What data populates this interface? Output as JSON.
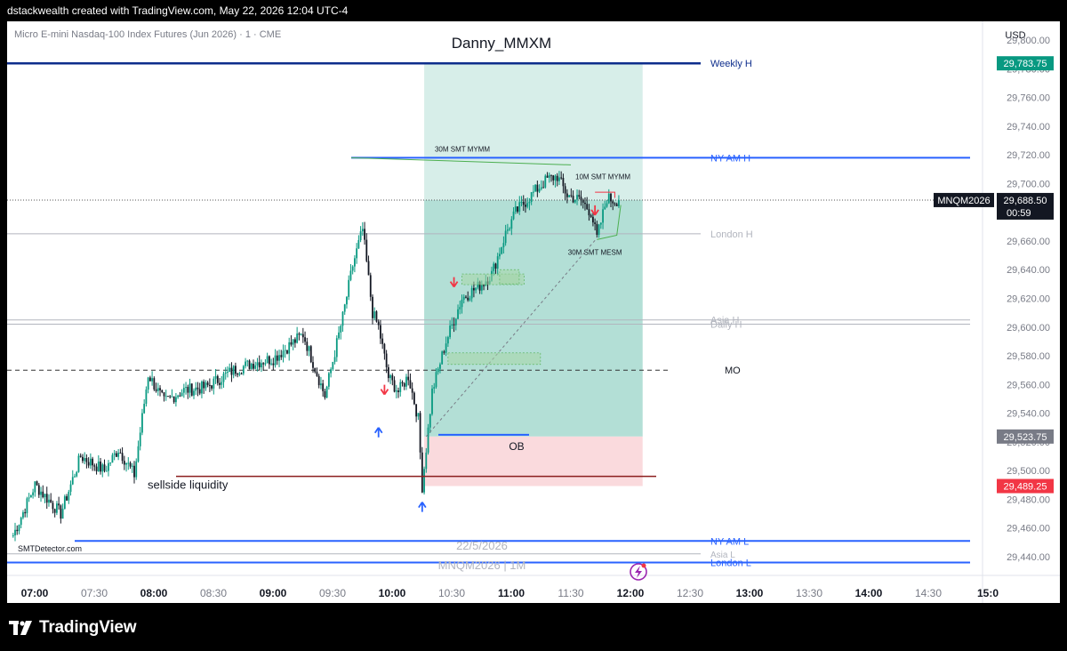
{
  "topbar": {
    "caption": "dstackwealth created with TradingView.com, May 22, 2026 12:04 UTC-4"
  },
  "header": {
    "symbol_desc": "Micro E-mini Nasdaq-100 Index Futures (Jun 2026) · 1 · CME",
    "currency": "USD"
  },
  "chart_title": "Danny_MMXM",
  "footer": {
    "brand": "TradingView"
  },
  "chart_data": {
    "type": "candlestick",
    "symbol": "MNQM2026",
    "interval": "1M",
    "watermark": [
      "22/5/2026",
      "MNQM2026 | 1M"
    ],
    "credit": "SMTDetector.com",
    "x_ticks": [
      "07:00",
      "07:30",
      "08:00",
      "08:30",
      "09:00",
      "09:30",
      "10:00",
      "10:30",
      "11:00",
      "11:30",
      "12:00",
      "12:30",
      "13:00",
      "13:30",
      "14:00",
      "14:30",
      "15:0"
    ],
    "y_ticks": [
      29440,
      29460,
      29480,
      29500,
      29520,
      29540,
      29560,
      29580,
      29600,
      29620,
      29640,
      29660,
      29680,
      29700,
      29720,
      29740,
      29760,
      29780,
      29800
    ],
    "y_tick_labels": [
      "29,440.00",
      "29,460.00",
      "29,480.00",
      "29,500.00",
      "29,520.00",
      "29,540.00",
      "29,560.00",
      "29,580.00",
      "29,600.00",
      "29,620.00",
      "29,640.00",
      "29,660.00",
      "29,680.00",
      "29,700.00",
      "29,720.00",
      "29,740.00",
      "29,760.00",
      "29,780.00",
      "29,800.00"
    ],
    "y_range": [
      29427,
      29813
    ],
    "last_price": {
      "symbol": "MNQM2026",
      "value": "29,688.50",
      "countdown": "00:59",
      "level": 29688.5
    },
    "price_badges": [
      {
        "label": "29,783.75",
        "level": 29783.75,
        "color": "#089981"
      },
      {
        "label": "29,523.75",
        "level": 29523.75,
        "color": "#787b86"
      },
      {
        "label": "29,489.25",
        "level": 29489.25,
        "color": "#f23645"
      }
    ],
    "levels": [
      {
        "name": "Weekly H",
        "price": 29783.75,
        "color": "#0d2d8c"
      },
      {
        "name": "NY AM H",
        "price": 29718,
        "color": "#2962ff"
      },
      {
        "name": "London H",
        "price": 29665,
        "color": "#b2b5be"
      },
      {
        "name": "Asia H",
        "price": 29605,
        "color": "#b2b5be"
      },
      {
        "name": "Daily H",
        "price": 29602,
        "color": "#b2b5be"
      },
      {
        "name": "MO",
        "price": 29570,
        "color": "#131722"
      },
      {
        "name": "NY AM L",
        "price": 29451,
        "color": "#2962ff"
      },
      {
        "name": "Asia L",
        "price": 29442,
        "color": "#b2b5be"
      },
      {
        "name": "London L",
        "price": 29436,
        "color": "#2962ff"
      }
    ],
    "annotations": [
      {
        "text": "sellside liquidity",
        "price": 29496
      },
      {
        "text": "OB",
        "price": 29523.75
      },
      {
        "text": "30M SMT MYMM"
      },
      {
        "text": "10M SMT MYMM"
      },
      {
        "text": "30M SMT MESM"
      }
    ],
    "long_position": {
      "entry": 29523.75,
      "target": 29783.75,
      "stop": 29489.25,
      "start_time": "10:26",
      "end_time": "12:16"
    },
    "candles_anchor": [
      [
        "06:59",
        29455
      ],
      [
        "07:10",
        29490
      ],
      [
        "07:23",
        29470
      ],
      [
        "07:33",
        29510
      ],
      [
        "07:45",
        29500
      ],
      [
        "07:52",
        29515
      ],
      [
        "08:00",
        29497
      ],
      [
        "08:07",
        29567
      ],
      [
        "08:15",
        29548
      ],
      [
        "08:25",
        29556
      ],
      [
        "08:36",
        29558
      ],
      [
        "08:50",
        29570
      ],
      [
        "09:00",
        29575
      ],
      [
        "09:10",
        29578
      ],
      [
        "09:25",
        29595
      ],
      [
        "09:36",
        29552
      ],
      [
        "09:45",
        29607
      ],
      [
        "09:50",
        29643
      ],
      [
        "09:55",
        29668
      ],
      [
        "10:00",
        29610
      ],
      [
        "10:03",
        29600
      ],
      [
        "10:08",
        29565
      ],
      [
        "10:13",
        29555
      ],
      [
        "10:18",
        29566
      ],
      [
        "10:23",
        29536
      ],
      [
        "10:25",
        29489
      ],
      [
        "10:30",
        29555
      ],
      [
        "10:37",
        29590
      ],
      [
        "10:45",
        29620
      ],
      [
        "10:55",
        29630
      ],
      [
        "11:00",
        29637
      ],
      [
        "11:07",
        29665
      ],
      [
        "11:12",
        29680
      ],
      [
        "11:22",
        29695
      ],
      [
        "11:28",
        29703
      ],
      [
        "11:33",
        29705
      ],
      [
        "11:38",
        29692
      ],
      [
        "11:45",
        29688
      ],
      [
        "11:50",
        29680
      ],
      [
        "11:53",
        29662
      ],
      [
        "11:58",
        29690
      ],
      [
        "12:02",
        29688
      ],
      [
        "12:04",
        29688.5
      ]
    ]
  }
}
